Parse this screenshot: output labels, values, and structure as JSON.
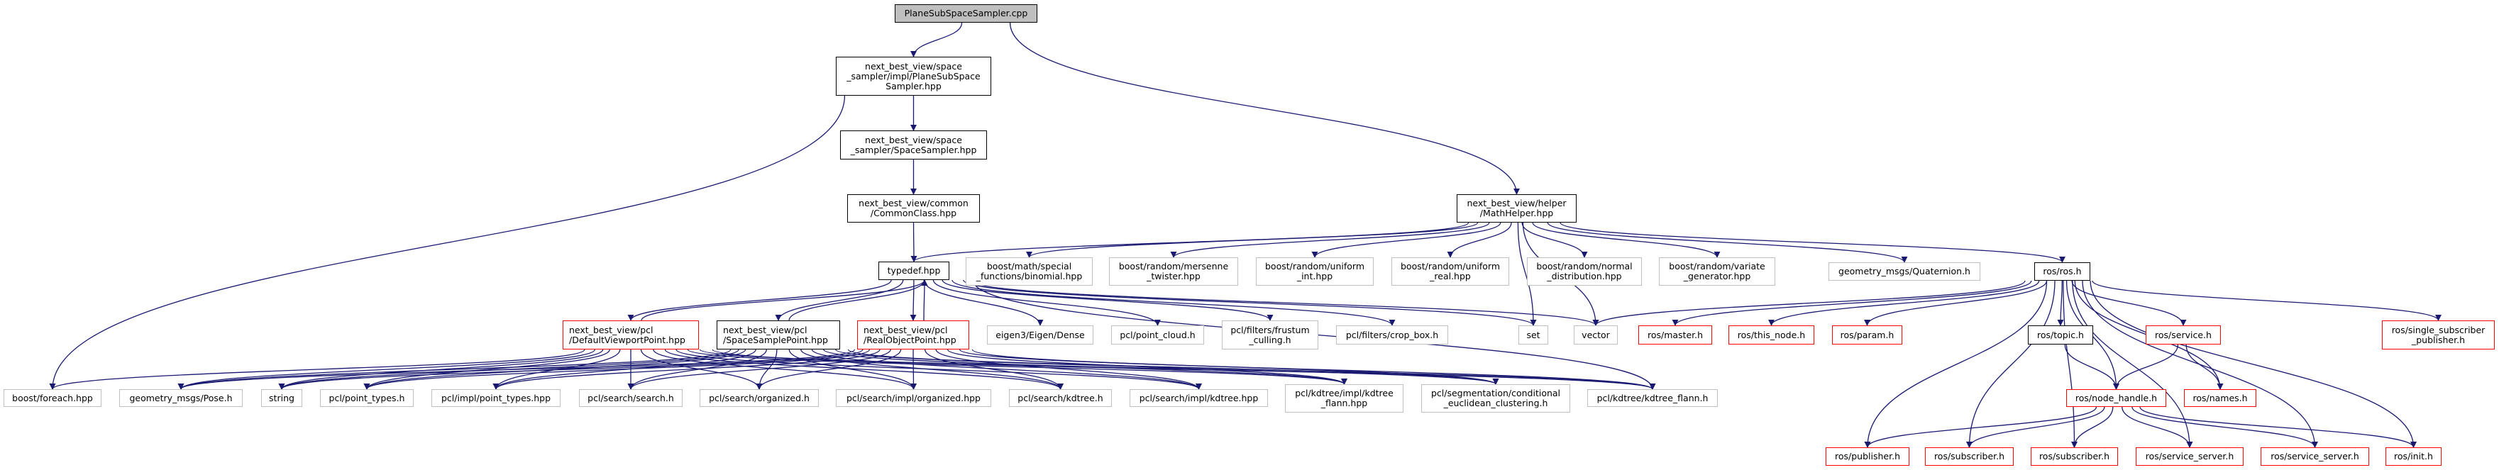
{
  "graph": {
    "title": "PlaneSubSpaceSampler.cpp",
    "colors": {
      "edge": "#191970",
      "main_fill": "#bfbfbf",
      "documented_border": "#000000",
      "external_border": "#bfbfbf",
      "truncated_border": "#ff0000"
    },
    "nodes": [
      {
        "id": "cpp",
        "label": "PlaneSubSpaceSampler.cpp",
        "kind": "main"
      },
      {
        "id": "psss",
        "label": "next_best_view/space\n_sampler/impl/PlaneSubSpace\nSampler.hpp",
        "kind": "doc"
      },
      {
        "id": "ss",
        "label": "next_best_view/space\n_sampler/SpaceSampler.hpp",
        "kind": "doc"
      },
      {
        "id": "common",
        "label": "next_best_view/common\n/CommonClass.hpp",
        "kind": "doc"
      },
      {
        "id": "typedef",
        "label": "typedef.hpp",
        "kind": "doc"
      },
      {
        "id": "math",
        "label": "next_best_view/helper\n/MathHelper.hpp",
        "kind": "doc"
      },
      {
        "id": "binomial",
        "label": "boost/math/special\n_functions/binomial.hpp",
        "kind": "ext"
      },
      {
        "id": "mersenne",
        "label": "boost/random/mersenne\n_twister.hpp",
        "kind": "ext"
      },
      {
        "id": "uint",
        "label": "boost/random/uniform\n_int.hpp",
        "kind": "ext"
      },
      {
        "id": "ureal",
        "label": "boost/random/uniform\n_real.hpp",
        "kind": "ext"
      },
      {
        "id": "normal",
        "label": "boost/random/normal\n_distribution.hpp",
        "kind": "ext"
      },
      {
        "id": "variate",
        "label": "boost/random/variate\n_generator.hpp",
        "kind": "ext"
      },
      {
        "id": "quat",
        "label": "geometry_msgs/Quaternion.h",
        "kind": "ext"
      },
      {
        "id": "ros",
        "label": "ros/ros.h",
        "kind": "doc"
      },
      {
        "id": "dvp",
        "label": "next_best_view/pcl\n/DefaultViewportPoint.hpp",
        "kind": "trunc",
        "align": "left"
      },
      {
        "id": "ssp",
        "label": "next_best_view/pcl\n/SpaceSamplePoint.hpp",
        "kind": "doc",
        "align": "left"
      },
      {
        "id": "rop",
        "label": "next_best_view/pcl\n/RealObjectPoint.hpp",
        "kind": "trunc",
        "align": "left"
      },
      {
        "id": "eigen",
        "label": "eigen3/Eigen/Dense",
        "kind": "ext"
      },
      {
        "id": "pcloud",
        "label": "pcl/point_cloud.h",
        "kind": "ext"
      },
      {
        "id": "frustum",
        "label": "pcl/filters/frustum\n_culling.h",
        "kind": "ext"
      },
      {
        "id": "crop",
        "label": "pcl/filters/crop_box.h",
        "kind": "ext"
      },
      {
        "id": "set",
        "label": "set",
        "kind": "ext"
      },
      {
        "id": "vector",
        "label": "vector",
        "kind": "ext"
      },
      {
        "id": "master",
        "label": "ros/master.h",
        "kind": "trunc"
      },
      {
        "id": "thisnode",
        "label": "ros/this_node.h",
        "kind": "trunc"
      },
      {
        "id": "param",
        "label": "ros/param.h",
        "kind": "trunc"
      },
      {
        "id": "topic",
        "label": "ros/topic.h",
        "kind": "doc"
      },
      {
        "id": "service",
        "label": "ros/service.h",
        "kind": "trunc"
      },
      {
        "id": "single",
        "label": "ros/single_subscriber\n_publisher.h",
        "kind": "trunc"
      },
      {
        "id": "foreach",
        "label": "boost/foreach.hpp",
        "kind": "ext"
      },
      {
        "id": "pose",
        "label": "geometry_msgs/Pose.h",
        "kind": "ext"
      },
      {
        "id": "string",
        "label": "string",
        "kind": "ext"
      },
      {
        "id": "ptypes",
        "label": "pcl/point_types.h",
        "kind": "ext"
      },
      {
        "id": "iptypes",
        "label": "pcl/impl/point_types.hpp",
        "kind": "ext"
      },
      {
        "id": "search",
        "label": "pcl/search/search.h",
        "kind": "ext"
      },
      {
        "id": "org",
        "label": "pcl/search/organized.h",
        "kind": "ext"
      },
      {
        "id": "iorg",
        "label": "pcl/search/impl/organized.hpp",
        "kind": "ext"
      },
      {
        "id": "kdtree",
        "label": "pcl/search/kdtree.h",
        "kind": "ext"
      },
      {
        "id": "ikdtree",
        "label": "pcl/search/impl/kdtree.hpp",
        "kind": "ext"
      },
      {
        "id": "ikflann",
        "label": "pcl/kdtree/impl/kdtree\n_flann.hpp",
        "kind": "ext"
      },
      {
        "id": "cec",
        "label": "pcl/segmentation/conditional\n_euclidean_clustering.h",
        "kind": "ext"
      },
      {
        "id": "kflann",
        "label": "pcl/kdtree/kdtree_flann.h",
        "kind": "ext"
      },
      {
        "id": "nodehandle",
        "label": "ros/node_handle.h",
        "kind": "trunc"
      },
      {
        "id": "names",
        "label": "ros/names.h",
        "kind": "trunc"
      },
      {
        "id": "publisher",
        "label": "ros/publisher.h",
        "kind": "trunc"
      },
      {
        "id": "subscriber1",
        "label": "ros/subscriber.h",
        "kind": "trunc"
      },
      {
        "id": "subscriber2",
        "label": "ros/subscriber.h",
        "kind": "trunc"
      },
      {
        "id": "sserver1",
        "label": "ros/service_server.h",
        "kind": "trunc"
      },
      {
        "id": "sserver2",
        "label": "ros/service_server.h",
        "kind": "trunc"
      },
      {
        "id": "init",
        "label": "ros/init.h",
        "kind": "trunc"
      }
    ],
    "edges": [
      [
        "cpp",
        "psss"
      ],
      [
        "cpp",
        "math"
      ],
      [
        "psss",
        "ss"
      ],
      [
        "psss",
        "foreach"
      ],
      [
        "ss",
        "common"
      ],
      [
        "common",
        "typedef"
      ],
      [
        "math",
        "typedef"
      ],
      [
        "math",
        "binomial"
      ],
      [
        "math",
        "mersenne"
      ],
      [
        "math",
        "uint"
      ],
      [
        "math",
        "ureal"
      ],
      [
        "math",
        "normal"
      ],
      [
        "math",
        "variate"
      ],
      [
        "math",
        "quat"
      ],
      [
        "math",
        "ros"
      ],
      [
        "math",
        "set"
      ],
      [
        "math",
        "vector"
      ],
      [
        "typedef",
        "dvp"
      ],
      [
        "typedef",
        "ssp"
      ],
      [
        "typedef",
        "rop"
      ],
      [
        "typedef",
        "eigen"
      ],
      [
        "typedef",
        "pcloud"
      ],
      [
        "typedef",
        "frustum"
      ],
      [
        "typedef",
        "crop"
      ],
      [
        "typedef",
        "set"
      ],
      [
        "typedef",
        "vector"
      ],
      [
        "typedef",
        "kflann"
      ],
      [
        "dvp",
        "typedef"
      ],
      [
        "dvp",
        "foreach"
      ],
      [
        "dvp",
        "pose"
      ],
      [
        "dvp",
        "string"
      ],
      [
        "dvp",
        "ptypes"
      ],
      [
        "dvp",
        "iptypes"
      ],
      [
        "dvp",
        "search"
      ],
      [
        "dvp",
        "org"
      ],
      [
        "dvp",
        "iorg"
      ],
      [
        "dvp",
        "kdtree"
      ],
      [
        "dvp",
        "ikdtree"
      ],
      [
        "dvp",
        "ikflann"
      ],
      [
        "dvp",
        "cec"
      ],
      [
        "dvp",
        "kflann"
      ],
      [
        "ssp",
        "typedef"
      ],
      [
        "ssp",
        "pose"
      ],
      [
        "ssp",
        "string"
      ],
      [
        "ssp",
        "ptypes"
      ],
      [
        "ssp",
        "iptypes"
      ],
      [
        "ssp",
        "search"
      ],
      [
        "ssp",
        "org"
      ],
      [
        "ssp",
        "iorg"
      ],
      [
        "ssp",
        "kdtree"
      ],
      [
        "ssp",
        "ikdtree"
      ],
      [
        "ssp",
        "ikflann"
      ],
      [
        "ssp",
        "cec"
      ],
      [
        "ssp",
        "kflann"
      ],
      [
        "rop",
        "typedef"
      ],
      [
        "rop",
        "pose"
      ],
      [
        "rop",
        "string"
      ],
      [
        "rop",
        "ptypes"
      ],
      [
        "rop",
        "iptypes"
      ],
      [
        "rop",
        "search"
      ],
      [
        "rop",
        "org"
      ],
      [
        "rop",
        "iorg"
      ],
      [
        "rop",
        "kdtree"
      ],
      [
        "rop",
        "ikdtree"
      ],
      [
        "rop",
        "ikflann"
      ],
      [
        "rop",
        "cec"
      ],
      [
        "rop",
        "kflann"
      ],
      [
        "ros",
        "master"
      ],
      [
        "ros",
        "thisnode"
      ],
      [
        "ros",
        "param"
      ],
      [
        "ros",
        "topic"
      ],
      [
        "ros",
        "service"
      ],
      [
        "ros",
        "nodehandle"
      ],
      [
        "ros",
        "names"
      ],
      [
        "ros",
        "single"
      ],
      [
        "ros",
        "publisher"
      ],
      [
        "ros",
        "subscriber1"
      ],
      [
        "ros",
        "subscriber2"
      ],
      [
        "ros",
        "sserver1"
      ],
      [
        "ros",
        "sserver2"
      ],
      [
        "ros",
        "init"
      ],
      [
        "ros",
        "vector"
      ],
      [
        "topic",
        "nodehandle"
      ],
      [
        "service",
        "nodehandle"
      ],
      [
        "service",
        "names"
      ],
      [
        "nodehandle",
        "publisher"
      ],
      [
        "nodehandle",
        "subscriber1"
      ],
      [
        "nodehandle",
        "subscriber2"
      ],
      [
        "nodehandle",
        "sserver1"
      ],
      [
        "nodehandle",
        "sserver2"
      ],
      [
        "nodehandle",
        "init"
      ]
    ]
  }
}
